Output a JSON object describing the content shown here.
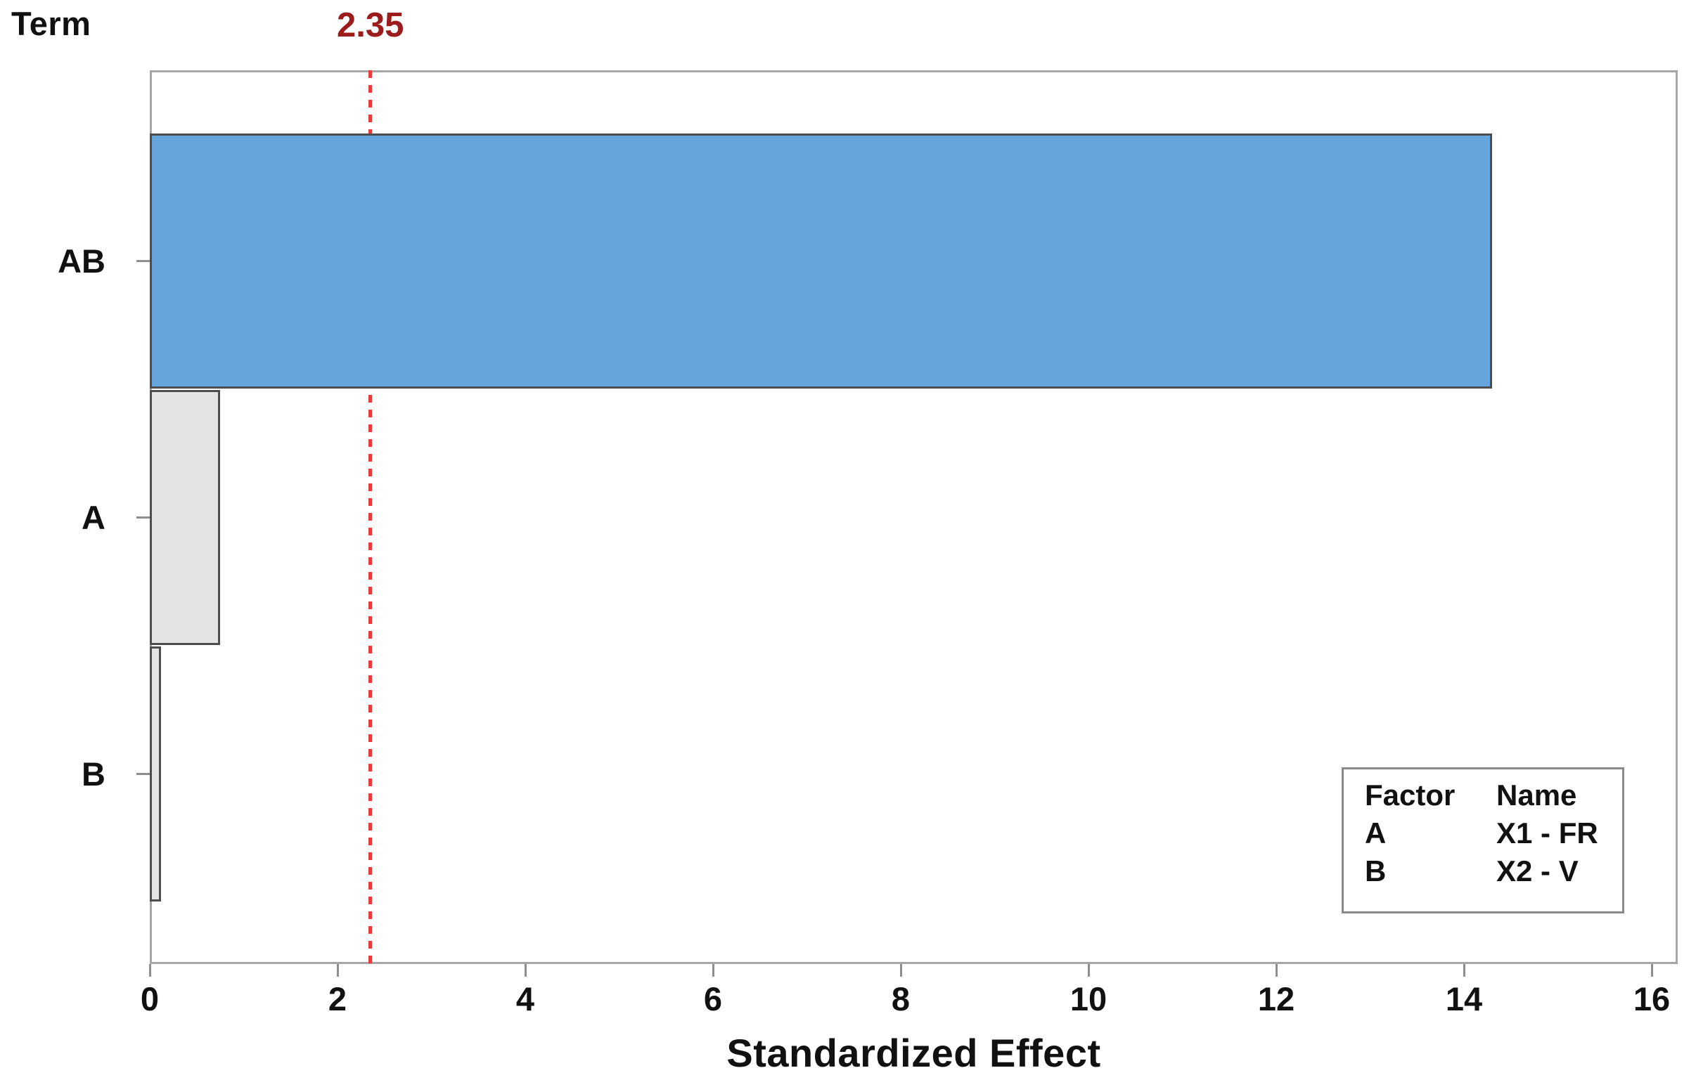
{
  "chart_data": {
    "type": "bar",
    "orientation": "horizontal",
    "term_label": "Term",
    "xlabel": "Standardized Effect",
    "categories": [
      "AB",
      "A",
      "B"
    ],
    "values": [
      14.3,
      0.75,
      0.12
    ],
    "significant": [
      true,
      false,
      false
    ],
    "xlim": [
      0,
      16.3
    ],
    "xticks": [
      0,
      2,
      4,
      6,
      8,
      10,
      12,
      14,
      16
    ],
    "grid": "off",
    "reference_line": {
      "value": 2.35,
      "label": "2.35"
    },
    "colors": {
      "significant_bar": "#66a5dc",
      "nonsignificant_bar": "#e4e4e4",
      "bar_border": "#4d4d4d",
      "frame_border": "#a6a6a6",
      "reference_line": "#e73b3b",
      "reference_label": "#9c1b1b"
    },
    "legend": {
      "headers": [
        "Factor",
        "Name"
      ],
      "rows": [
        [
          "A",
          "X1 - FR"
        ],
        [
          "B",
          "X2 - V"
        ]
      ]
    }
  }
}
